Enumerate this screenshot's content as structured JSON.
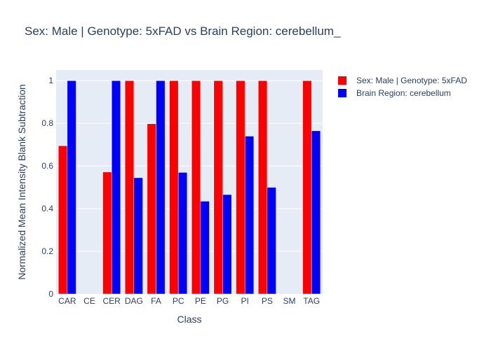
{
  "chart_data": {
    "type": "bar",
    "title": "Sex: Male | Genotype: 5xFAD vs Brain Region: cerebellum_",
    "xlabel": "Class",
    "ylabel": "Normalized Mean Intensity Blank Subtraction",
    "categories": [
      "CAR",
      "CE",
      "CER",
      "DAG",
      "FA",
      "PC",
      "PE",
      "PG",
      "PI",
      "PS",
      "SM",
      "TAG"
    ],
    "ylim": [
      0,
      1.05
    ],
    "yticks": [
      "0",
      "0.2",
      "0.4",
      "0.6",
      "0.8",
      "1"
    ],
    "grid": true,
    "legend_position": "top-right",
    "plot_background": "#e5ecf6",
    "series": [
      {
        "name": "Sex: Male | Genotype: 5xFAD",
        "color": "#ff0000",
        "values": [
          0.695,
          null,
          0.572,
          1.0,
          0.798,
          1.0,
          1.0,
          1.0,
          1.0,
          1.0,
          null,
          1.0
        ]
      },
      {
        "name": "Brain Region: cerebellum",
        "color": "#0000ff",
        "values": [
          1.0,
          null,
          1.0,
          0.545,
          1.0,
          0.57,
          0.435,
          0.466,
          0.74,
          0.5,
          null,
          0.765
        ]
      }
    ]
  }
}
